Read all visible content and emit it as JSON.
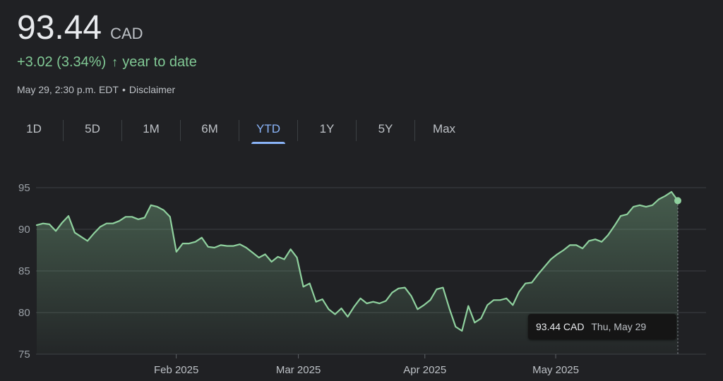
{
  "header": {
    "price": "93.44",
    "currency": "CAD",
    "change": "+3.02 (3.34%)",
    "change_arrow": "↑",
    "change_period": "year to date",
    "timestamp": "May 29, 2:30 p.m. EDT",
    "separator": "•",
    "disclaimer": "Disclaimer"
  },
  "tabs": [
    {
      "label": "1D"
    },
    {
      "label": "5D"
    },
    {
      "label": "1M"
    },
    {
      "label": "6M"
    },
    {
      "label": "YTD",
      "active": true
    },
    {
      "label": "1Y"
    },
    {
      "label": "5Y"
    },
    {
      "label": "Max"
    }
  ],
  "colors": {
    "background": "#202124",
    "positive": "#81c995",
    "active_tab": "#8ab4f8",
    "line": "#8fd19e"
  },
  "tooltip": {
    "price": "93.44 CAD",
    "date": "Thu, May 29"
  },
  "chart_data": {
    "type": "area",
    "x_start": "2025-01-02",
    "x_end": "2025-05-29",
    "ylim": [
      75,
      95
    ],
    "y_ticks": [
      95,
      90,
      85,
      80,
      75
    ],
    "x_ticks": [
      {
        "label": "Feb 2025",
        "date": "2025-02-03"
      },
      {
        "label": "Mar 2025",
        "date": "2025-03-03"
      },
      {
        "label": "Apr 2025",
        "date": "2025-04-01"
      },
      {
        "label": "May 2025",
        "date": "2025-05-01"
      }
    ],
    "grid": true,
    "series": [
      {
        "values": [
          90.5,
          90.7,
          90.6,
          89.8,
          90.8,
          91.6,
          89.6,
          89.1,
          88.6,
          89.5,
          90.3,
          90.7,
          90.7,
          91.0,
          91.5,
          91.5,
          91.2,
          91.4,
          92.9,
          92.7,
          92.3,
          91.5,
          87.3,
          88.3,
          88.3,
          88.5,
          89.0,
          87.9,
          87.8,
          88.1,
          88.0,
          88.0,
          88.2,
          87.8,
          87.2,
          86.6,
          87.0,
          86.1,
          86.7,
          86.4,
          87.6,
          86.6,
          83.1,
          83.5,
          81.3,
          81.6,
          80.4,
          79.8,
          80.5,
          79.5,
          80.7,
          81.7,
          81.1,
          81.3,
          81.1,
          81.4,
          82.4,
          82.9,
          83.0,
          82.0,
          80.4,
          80.9,
          81.5,
          82.8,
          83.0,
          80.5,
          78.3,
          77.8,
          80.8,
          78.8,
          79.3,
          80.9,
          81.5,
          81.5,
          81.7,
          80.9,
          82.5,
          83.5,
          83.6,
          84.6,
          85.5,
          86.4,
          87.0,
          87.5,
          88.1,
          88.1,
          87.7,
          88.6,
          88.8,
          88.5,
          89.3,
          90.4,
          91.6,
          91.8,
          92.7,
          92.9,
          92.7,
          92.9,
          93.6,
          94.0,
          94.5,
          93.44
        ]
      }
    ]
  }
}
